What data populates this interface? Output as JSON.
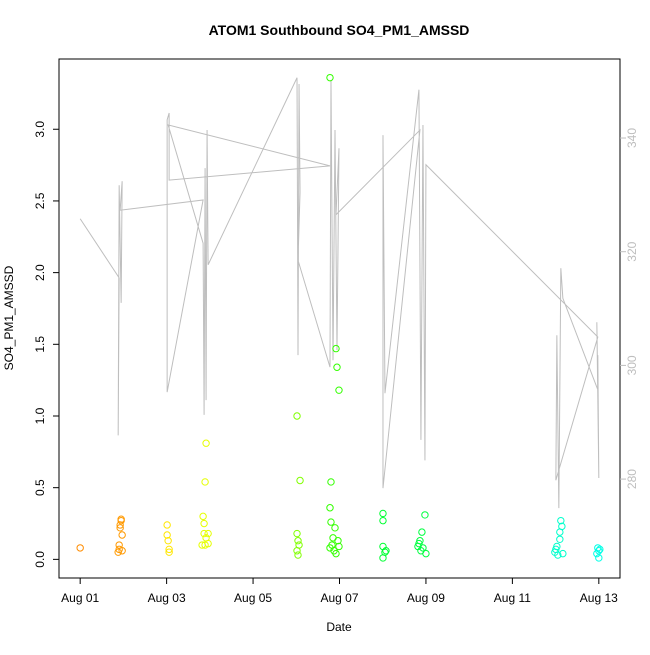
{
  "chart_data": {
    "type": "scatter",
    "title": "ATOM1 Southbound SO4_PM1_AMSSD",
    "x_label": "Date",
    "y_label": "SO4_PM1_AMSSD",
    "xlim": [
      0.51,
      13.49
    ],
    "ylim": [
      -0.13,
      3.49
    ],
    "y2lim": [
      262.6,
      353.9
    ],
    "xticks": [
      {
        "value": 1,
        "label": "Aug 01"
      },
      {
        "value": 3,
        "label": "Aug 03"
      },
      {
        "value": 5,
        "label": "Aug 05"
      },
      {
        "value": 7,
        "label": "Aug 07"
      },
      {
        "value": 9,
        "label": "Aug 09"
      },
      {
        "value": 11,
        "label": "Aug 11"
      },
      {
        "value": 13,
        "label": "Aug 13"
      }
    ],
    "yticks": [
      {
        "value": 0,
        "label": "0.0"
      },
      0.5,
      {
        "value": 1,
        "label": "1.0"
      },
      1.5,
      {
        "value": 2,
        "label": "2.0"
      },
      2.5,
      {
        "value": 3,
        "label": "3.0"
      }
    ],
    "y2ticks": [
      280,
      300,
      320,
      340
    ],
    "series": [
      {
        "type": "scatter",
        "x": [
          1.0,
          1.879,
          1.902,
          1.925,
          1.948,
          1.902,
          1.925,
          1.948,
          1.971,
          1.971,
          3.012,
          3.012,
          3.035,
          3.058,
          3.058,
          3.844,
          3.89,
          3.913,
          3.867,
          3.867,
          3.913,
          3.96,
          3.821,
          3.89,
          3.96,
          6.017,
          6.087,
          6.017,
          6.04,
          6.064,
          6.017,
          6.04,
          6.78,
          6.78,
          6.803,
          6.919,
          6.942,
          6.988,
          6.803,
          6.896,
          6.85,
          6.965,
          6.78,
          6.873,
          6.919,
          6.988,
          6.826,
          8.006,
          8.006,
          8.006,
          8.052,
          8.006,
          8.075,
          8.977,
          8.907,
          8.838,
          8.931,
          8.884,
          9.0,
          8.815,
          8.861,
          12.121,
          12.145,
          12.098,
          12.098,
          12.029,
          11.983,
          12.052,
          12.168,
          12.006,
          12.977,
          13.0,
          12.954,
          13.023,
          13.0
        ],
        "values": [
          0.08,
          0.05,
          0.07,
          0.22,
          0.28,
          0.1,
          0.24,
          0.27,
          0.17,
          0.06,
          0.24,
          0.17,
          0.13,
          0.07,
          0.05,
          0.3,
          0.54,
          0.81,
          0.25,
          0.18,
          0.15,
          0.18,
          0.1,
          0.1,
          0.11,
          1.0,
          0.55,
          0.18,
          0.13,
          0.1,
          0.06,
          0.03,
          3.36,
          0.36,
          0.54,
          1.47,
          1.34,
          1.18,
          0.26,
          0.22,
          0.15,
          0.13,
          0.08,
          0.06,
          0.04,
          0.09,
          0.1,
          0.32,
          0.27,
          0.09,
          0.05,
          0.01,
          0.06,
          0.31,
          0.19,
          0.11,
          0.08,
          0.06,
          0.04,
          0.09,
          0.13,
          0.27,
          0.23,
          0.19,
          0.14,
          0.09,
          0.05,
          0.03,
          0.04,
          0.07,
          0.08,
          0.06,
          0.04,
          0.07,
          0.01
        ],
        "colors": [
          "#FF8C00",
          "#FF9900",
          "#FF9900",
          "#FF9900",
          "#FF9900",
          "#FF9900",
          "#FF9900",
          "#FF9900",
          "#FF9900",
          "#FF9900",
          "#FFE600",
          "#FFE600",
          "#FFE600",
          "#FFE600",
          "#FFE600",
          "#E6FF00",
          "#E6FF00",
          "#E6FF00",
          "#E6FF00",
          "#E6FF00",
          "#E6FF00",
          "#E6FF00",
          "#E6FF00",
          "#E6FF00",
          "#E6FF00",
          "#80FF00",
          "#80FF00",
          "#80FF00",
          "#80FF00",
          "#80FF00",
          "#80FF00",
          "#80FF00",
          "#33FF00",
          "#33FF00",
          "#33FF00",
          "#33FF00",
          "#33FF00",
          "#33FF00",
          "#33FF00",
          "#33FF00",
          "#33FF00",
          "#33FF00",
          "#33FF00",
          "#33FF00",
          "#33FF00",
          "#33FF00",
          "#33FF00",
          "#00FF33",
          "#00FF33",
          "#00FF33",
          "#00FF33",
          "#00FF33",
          "#00FF33",
          "#00FF40",
          "#00FF40",
          "#00FF40",
          "#00FF40",
          "#00FF40",
          "#00FF40",
          "#00FF40",
          "#00FF40",
          "#00FFCC",
          "#00FFCC",
          "#00FFCC",
          "#00FFCC",
          "#00FFCC",
          "#00FFCC",
          "#00FFCC",
          "#00FFCC",
          "#00FFCC",
          "#00FFE6",
          "#00FFE6",
          "#00FFE6",
          "#00FFE6",
          "#00FFE6"
        ]
      },
      {
        "type": "line",
        "axis": "y2",
        "color": "#BEBEBE",
        "x": [
          1.0,
          1.902,
          1.879,
          1.902,
          1.948,
          1.971,
          1.925,
          3.844,
          3.012,
          3.012,
          3.058,
          3.058,
          6.78,
          3.035,
          3.844,
          3.867,
          3.89,
          3.913,
          3.936,
          3.96,
          6.017,
          6.04,
          6.064,
          6.087,
          6.04,
          6.78,
          6.803,
          6.85,
          6.896,
          6.942,
          6.988,
          6.919,
          8.861,
          8.006,
          8.006,
          8.052,
          8.838,
          8.884,
          8.931,
          8.977,
          9.0,
          12.977,
          12.006,
          12.029,
          12.075,
          12.121,
          12.168,
          12.977,
          12.954,
          13.0,
          12.977
        ],
        "values": [
          325.8,
          315.4,
          287.7,
          331.7,
          311.0,
          332.4,
          327.3,
          329.1,
          295.3,
          343.2,
          344.4,
          332.6,
          335.1,
          342.3,
          321.5,
          291.3,
          334.7,
          293.9,
          341.4,
          317.7,
          350.6,
          301.8,
          349.5,
          330.5,
          318.5,
          299.7,
          350.2,
          300.9,
          341.4,
          302.7,
          338.2,
          326.5,
          341.4,
          278.4,
          340.5,
          295.1,
          348.5,
          286.9,
          342.3,
          283.3,
          335.3,
          305.0,
          279.8,
          305.3,
          274.9,
          317.1,
          311.8,
          295.7,
          307.6,
          280.2,
          301.8
        ]
      }
    ]
  }
}
